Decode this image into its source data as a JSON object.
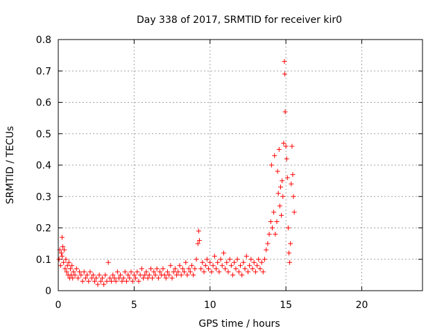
{
  "chart_data": {
    "type": "scatter",
    "title": "Day 338 of 2017, SRMTID for receiver kir0",
    "xlabel": "GPS time / hours",
    "ylabel": "SRMTID / TECUs",
    "xlim": [
      0,
      24
    ],
    "ylim": [
      0,
      0.8
    ],
    "xticks": [
      0,
      5,
      10,
      15,
      20
    ],
    "yticks": [
      0,
      0.1,
      0.2,
      0.3,
      0.4,
      0.5,
      0.6,
      0.7,
      0.8
    ],
    "xtick_labels": [
      "0",
      "5",
      "10",
      "15",
      "20"
    ],
    "ytick_labels": [
      "0",
      "0.1",
      "0.2",
      "0.3",
      "0.4",
      "0.5",
      "0.6",
      "0.7",
      "0.8"
    ],
    "grid": true,
    "marker": "+",
    "color": "#ff0000",
    "series": [
      {
        "name": "kir0",
        "points": [
          [
            0.05,
            0.1
          ],
          [
            0.1,
            0.13
          ],
          [
            0.15,
            0.08
          ],
          [
            0.2,
            0.12
          ],
          [
            0.25,
            0.11
          ],
          [
            0.25,
            0.17
          ],
          [
            0.3,
            0.14
          ],
          [
            0.35,
            0.09
          ],
          [
            0.4,
            0.13
          ],
          [
            0.45,
            0.07
          ],
          [
            0.5,
            0.1
          ],
          [
            0.55,
            0.06
          ],
          [
            0.6,
            0.08
          ],
          [
            0.65,
            0.05
          ],
          [
            0.7,
            0.09
          ],
          [
            0.75,
            0.04
          ],
          [
            0.8,
            0.07
          ],
          [
            0.85,
            0.05
          ],
          [
            0.9,
            0.08
          ],
          [
            0.95,
            0.04
          ],
          [
            1.0,
            0.06
          ],
          [
            1.1,
            0.05
          ],
          [
            1.2,
            0.07
          ],
          [
            1.3,
            0.04
          ],
          [
            1.4,
            0.06
          ],
          [
            1.5,
            0.05
          ],
          [
            1.6,
            0.03
          ],
          [
            1.7,
            0.06
          ],
          [
            1.8,
            0.04
          ],
          [
            1.9,
            0.05
          ],
          [
            2.0,
            0.03
          ],
          [
            2.1,
            0.06
          ],
          [
            2.2,
            0.04
          ],
          [
            2.3,
            0.05
          ],
          [
            2.4,
            0.03
          ],
          [
            2.5,
            0.04
          ],
          [
            2.6,
            0.02
          ],
          [
            2.7,
            0.05
          ],
          [
            2.8,
            0.03
          ],
          [
            2.9,
            0.04
          ],
          [
            3.0,
            0.02
          ],
          [
            3.1,
            0.05
          ],
          [
            3.2,
            0.03
          ],
          [
            3.3,
            0.09
          ],
          [
            3.4,
            0.04
          ],
          [
            3.5,
            0.03
          ],
          [
            3.6,
            0.05
          ],
          [
            3.7,
            0.04
          ],
          [
            3.8,
            0.03
          ],
          [
            3.9,
            0.06
          ],
          [
            4.0,
            0.04
          ],
          [
            4.1,
            0.05
          ],
          [
            4.2,
            0.03
          ],
          [
            4.3,
            0.04
          ],
          [
            4.4,
            0.06
          ],
          [
            4.5,
            0.03
          ],
          [
            4.6,
            0.05
          ],
          [
            4.7,
            0.04
          ],
          [
            4.8,
            0.06
          ],
          [
            4.9,
            0.03
          ],
          [
            5.0,
            0.05
          ],
          [
            5.1,
            0.04
          ],
          [
            5.2,
            0.06
          ],
          [
            5.3,
            0.03
          ],
          [
            5.4,
            0.05
          ],
          [
            5.5,
            0.07
          ],
          [
            5.6,
            0.04
          ],
          [
            5.7,
            0.05
          ],
          [
            5.8,
            0.06
          ],
          [
            5.9,
            0.04
          ],
          [
            6.0,
            0.05
          ],
          [
            6.1,
            0.07
          ],
          [
            6.2,
            0.04
          ],
          [
            6.3,
            0.06
          ],
          [
            6.4,
            0.05
          ],
          [
            6.5,
            0.07
          ],
          [
            6.6,
            0.04
          ],
          [
            6.7,
            0.06
          ],
          [
            6.8,
            0.05
          ],
          [
            6.9,
            0.07
          ],
          [
            7.0,
            0.05
          ],
          [
            7.1,
            0.04
          ],
          [
            7.2,
            0.06
          ],
          [
            7.3,
            0.05
          ],
          [
            7.4,
            0.08
          ],
          [
            7.5,
            0.04
          ],
          [
            7.6,
            0.06
          ],
          [
            7.7,
            0.07
          ],
          [
            7.8,
            0.05
          ],
          [
            7.9,
            0.06
          ],
          [
            8.0,
            0.08
          ],
          [
            8.1,
            0.05
          ],
          [
            8.2,
            0.07
          ],
          [
            8.3,
            0.06
          ],
          [
            8.4,
            0.09
          ],
          [
            8.5,
            0.05
          ],
          [
            8.6,
            0.07
          ],
          [
            8.7,
            0.06
          ],
          [
            8.8,
            0.08
          ],
          [
            8.9,
            0.05
          ],
          [
            9.0,
            0.07
          ],
          [
            9.1,
            0.1
          ],
          [
            9.2,
            0.15
          ],
          [
            9.25,
            0.19
          ],
          [
            9.3,
            0.16
          ],
          [
            9.4,
            0.07
          ],
          [
            9.5,
            0.09
          ],
          [
            9.6,
            0.06
          ],
          [
            9.7,
            0.08
          ],
          [
            9.8,
            0.1
          ],
          [
            9.9,
            0.07
          ],
          [
            10.0,
            0.09
          ],
          [
            10.1,
            0.06
          ],
          [
            10.2,
            0.08
          ],
          [
            10.3,
            0.11
          ],
          [
            10.4,
            0.07
          ],
          [
            10.5,
            0.09
          ],
          [
            10.6,
            0.06
          ],
          [
            10.7,
            0.1
          ],
          [
            10.8,
            0.08
          ],
          [
            10.9,
            0.12
          ],
          [
            11.0,
            0.07
          ],
          [
            11.1,
            0.09
          ],
          [
            11.2,
            0.06
          ],
          [
            11.3,
            0.1
          ],
          [
            11.4,
            0.08
          ],
          [
            11.5,
            0.05
          ],
          [
            11.6,
            0.09
          ],
          [
            11.7,
            0.07
          ],
          [
            11.8,
            0.1
          ],
          [
            11.9,
            0.06
          ],
          [
            12.0,
            0.08
          ],
          [
            12.1,
            0.05
          ],
          [
            12.2,
            0.09
          ],
          [
            12.3,
            0.07
          ],
          [
            12.4,
            0.11
          ],
          [
            12.5,
            0.06
          ],
          [
            12.6,
            0.08
          ],
          [
            12.7,
            0.1
          ],
          [
            12.8,
            0.07
          ],
          [
            12.9,
            0.09
          ],
          [
            13.0,
            0.06
          ],
          [
            13.1,
            0.08
          ],
          [
            13.2,
            0.1
          ],
          [
            13.3,
            0.07
          ],
          [
            13.4,
            0.09
          ],
          [
            13.5,
            0.06
          ],
          [
            13.6,
            0.1
          ],
          [
            13.7,
            0.13
          ],
          [
            13.8,
            0.15
          ],
          [
            13.9,
            0.18
          ],
          [
            14.0,
            0.22
          ],
          [
            14.05,
            0.4
          ],
          [
            14.1,
            0.2
          ],
          [
            14.2,
            0.25
          ],
          [
            14.25,
            0.43
          ],
          [
            14.3,
            0.18
          ],
          [
            14.4,
            0.22
          ],
          [
            14.45,
            0.38
          ],
          [
            14.5,
            0.31
          ],
          [
            14.55,
            0.45
          ],
          [
            14.6,
            0.27
          ],
          [
            14.65,
            0.33
          ],
          [
            14.7,
            0.24
          ],
          [
            14.75,
            0.35
          ],
          [
            14.8,
            0.3
          ],
          [
            14.85,
            0.47
          ],
          [
            14.9,
            0.73
          ],
          [
            14.92,
            0.69
          ],
          [
            14.95,
            0.57
          ],
          [
            15.0,
            0.46
          ],
          [
            15.05,
            0.42
          ],
          [
            15.1,
            0.36
          ],
          [
            15.15,
            0.2
          ],
          [
            15.2,
            0.12
          ],
          [
            15.25,
            0.09
          ],
          [
            15.3,
            0.15
          ],
          [
            15.35,
            0.34
          ],
          [
            15.4,
            0.46
          ],
          [
            15.45,
            0.37
          ],
          [
            15.5,
            0.3
          ],
          [
            15.55,
            0.25
          ]
        ]
      }
    ]
  }
}
